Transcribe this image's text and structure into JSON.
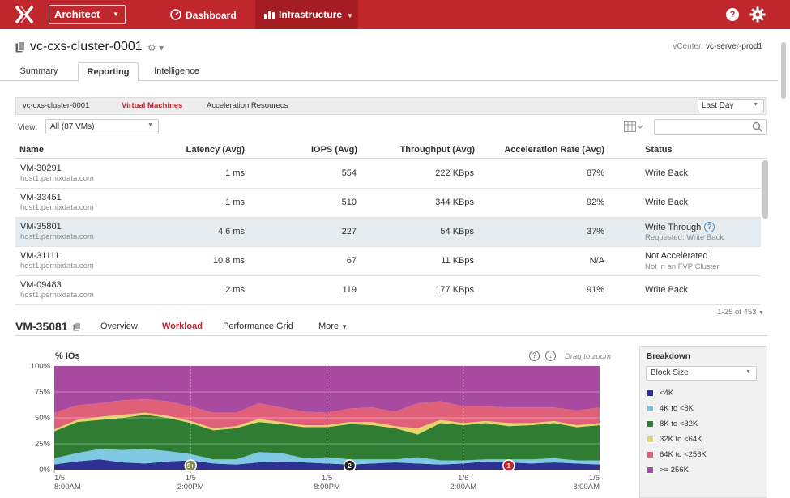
{
  "topbar": {
    "app_label": "Architect",
    "nav_dashboard": "Dashboard",
    "nav_infrastructure": "Infrastructure",
    "help_label": "?",
    "accent": "#c0272d"
  },
  "header": {
    "title": "vc-cxs-cluster-0001",
    "vcenter_label": "vCenter:",
    "vcenter_value": "vc-server-prod1"
  },
  "tabs": [
    "Summary",
    "Reporting",
    "Intelligence"
  ],
  "filterbar": {
    "items": [
      "vc-cxs-cluster-0001",
      "Virtual Machines",
      "Acceleration Resourecs"
    ],
    "range": "Last Day"
  },
  "view": {
    "label": "View:",
    "selected": "All (87 VMs)",
    "search_placeholder": ""
  },
  "table": {
    "columns": [
      "Name",
      "Latency (Avg)",
      "IOPS (Avg)",
      "Throughput (Avg)",
      "Acceleration Rate (Avg)",
      "Status"
    ],
    "rows": [
      {
        "name": "VM-30291",
        "host": "host1.pernixdata.com",
        "latency": ".1 ms",
        "iops": "554",
        "throughput": "222 KBps",
        "accel": "87%",
        "status": "Write Back",
        "status_sub": ""
      },
      {
        "name": "VM-33451",
        "host": "host1.pernixdata.com",
        "latency": ".1 ms",
        "iops": "510",
        "throughput": "344 KBps",
        "accel": "92%",
        "status": "Write Back",
        "status_sub": ""
      },
      {
        "name": "VM-35801",
        "host": "host1.pernixdata.com",
        "latency": "4.6 ms",
        "iops": "227",
        "throughput": "54 KBps",
        "accel": "37%",
        "status": "Write Through",
        "status_sub": "Requested: Write Back"
      },
      {
        "name": "VM-31111",
        "host": "host1.pernixdata.com",
        "latency": "10.8 ms",
        "iops": "67",
        "throughput": "11 KBps",
        "accel": "N/A",
        "status": "Not Accelerated",
        "status_sub": "Not in an FVP Cluster"
      },
      {
        "name": "VM-09483",
        "host": "host1.pernixdata.com",
        "latency": ".2 ms",
        "iops": "119",
        "throughput": "177 KBps",
        "accel": "91%",
        "status": "Write Back",
        "status_sub": ""
      }
    ],
    "pager": "1-25 of 453"
  },
  "detail": {
    "vm_name": "VM-35081",
    "tabs": [
      "Overview",
      "Workload",
      "Performance Grid",
      "More"
    ]
  },
  "chart_data": {
    "type": "area",
    "title": "% IOs",
    "drag_hint": "Drag to zoom",
    "ylim": [
      0,
      100
    ],
    "y_ticks": [
      "100%",
      "75%",
      "50%",
      "25%",
      "0%"
    ],
    "x_ticks": [
      {
        "date": "1/5",
        "time": "8:00AM"
      },
      {
        "date": "1/5",
        "time": "2:00PM"
      },
      {
        "date": "1/5",
        "time": "8:00PM"
      },
      {
        "date": "1/6",
        "time": "2:00AM"
      },
      {
        "date": "1/6",
        "time": "8:00AM"
      }
    ],
    "x": [
      0,
      1,
      2,
      3,
      4,
      5,
      6,
      7,
      8,
      9,
      10,
      11,
      12,
      13,
      14,
      15,
      16,
      17,
      18,
      19,
      20,
      21,
      22,
      23,
      24
    ],
    "series": [
      {
        "name": "<4K",
        "color": "#2e3192",
        "values": [
          5,
          8,
          10,
          7,
          6,
          8,
          9,
          6,
          5,
          7,
          8,
          7,
          6,
          5,
          6,
          7,
          6,
          5,
          6,
          8,
          7,
          6,
          7,
          6,
          5
        ]
      },
      {
        "name": "4K to <8K",
        "color": "#7ec8e3",
        "values": [
          6,
          8,
          10,
          12,
          14,
          10,
          6,
          4,
          5,
          10,
          8,
          4,
          6,
          5,
          4,
          3,
          6,
          4,
          3,
          2,
          3,
          4,
          4,
          3,
          4
        ]
      },
      {
        "name": "8K to <32K",
        "color": "#2e7d32",
        "values": [
          26,
          30,
          28,
          31,
          33,
          32,
          30,
          28,
          30,
          29,
          28,
          30,
          29,
          34,
          33,
          30,
          22,
          36,
          34,
          35,
          32,
          33,
          34,
          32,
          34
        ]
      },
      {
        "name": "32K to <64K",
        "color": "#e6d36a",
        "values": [
          2,
          2,
          3,
          3,
          2,
          2,
          2,
          2,
          2,
          3,
          2,
          2,
          2,
          2,
          3,
          2,
          6,
          3,
          2,
          2,
          3,
          2,
          2,
          2,
          2
        ]
      },
      {
        "name": "64K to  <256K",
        "color": "#e0607a",
        "values": [
          16,
          14,
          13,
          14,
          13,
          14,
          14,
          15,
          13,
          15,
          14,
          13,
          12,
          13,
          14,
          14,
          24,
          18,
          16,
          14,
          15,
          15,
          13,
          14,
          15
        ]
      },
      {
        "name": ">= 256K",
        "color": "#a84ba0",
        "values": [
          45,
          38,
          36,
          33,
          32,
          34,
          39,
          45,
          45,
          36,
          40,
          44,
          45,
          41,
          40,
          44,
          36,
          34,
          39,
          39,
          40,
          40,
          40,
          43,
          40
        ]
      }
    ],
    "events": [
      {
        "x": 6,
        "label": "9+"
      },
      {
        "x": 13,
        "label": "2"
      },
      {
        "x": 20,
        "label": "1"
      }
    ],
    "grid": true
  },
  "breakdown": {
    "title": "Breakdown",
    "selected": "Block Size"
  }
}
